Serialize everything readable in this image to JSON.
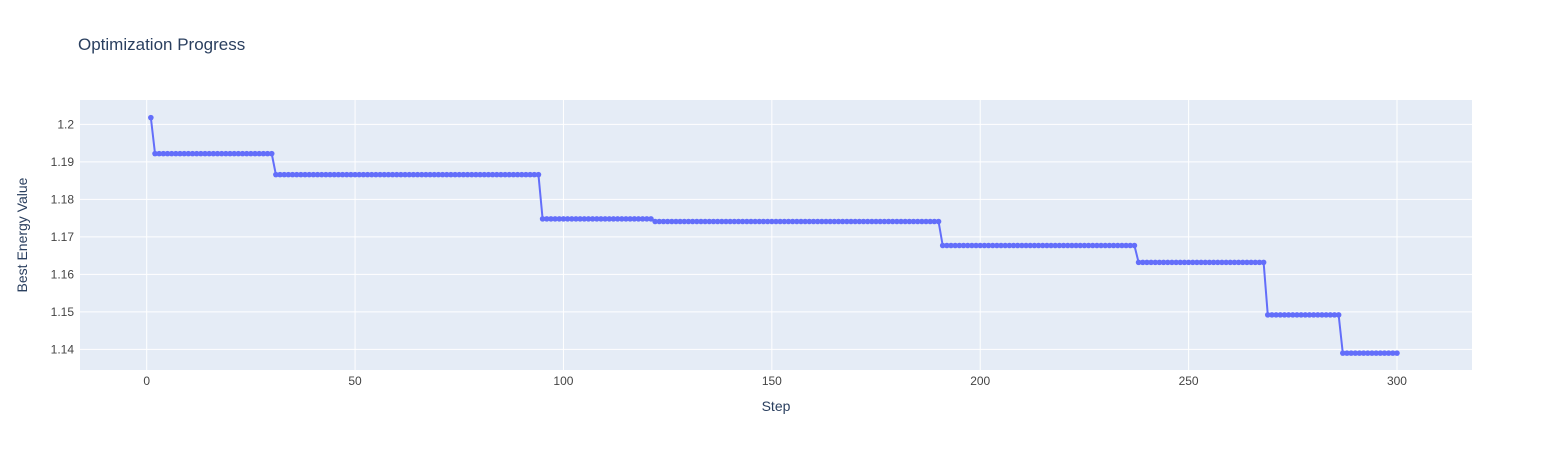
{
  "chart_data": {
    "type": "line",
    "title": "Optimization Progress",
    "xlabel": "Step",
    "ylabel": "Best Energy Value",
    "xlim": [
      -16,
      318
    ],
    "ylim": [
      1.1345,
      1.2065
    ],
    "xticks": [
      0,
      50,
      100,
      150,
      200,
      250,
      300
    ],
    "xtick_labels": [
      "0",
      "50",
      "100",
      "150",
      "200",
      "250",
      "300"
    ],
    "yticks": [
      1.14,
      1.15,
      1.16,
      1.17,
      1.18,
      1.19,
      1.2
    ],
    "ytick_labels": [
      "1.14",
      "1.15",
      "1.16",
      "1.17",
      "1.18",
      "1.19",
      "1.2"
    ],
    "grid": true,
    "series": [
      {
        "name": "Best Energy Value",
        "color": "#636efa",
        "mode": "lines+markers",
        "x_start": 1,
        "x_end": 300,
        "levels": [
          {
            "from": 1,
            "to": 1,
            "value": 1.2018
          },
          {
            "from": 2,
            "to": 30,
            "value": 1.1922
          },
          {
            "from": 31,
            "to": 94,
            "value": 1.1866
          },
          {
            "from": 95,
            "to": 121,
            "value": 1.1748
          },
          {
            "from": 122,
            "to": 190,
            "value": 1.1741
          },
          {
            "from": 191,
            "to": 237,
            "value": 1.1677
          },
          {
            "from": 238,
            "to": 268,
            "value": 1.1632
          },
          {
            "from": 269,
            "to": 286,
            "value": 1.1492
          },
          {
            "from": 287,
            "to": 300,
            "value": 1.139
          }
        ]
      }
    ]
  },
  "colors": {
    "plot_bg": "#e5ecf6",
    "grid": "#ffffff",
    "line": "#636efa",
    "text": "#2a3f5f",
    "tick_text": "#444444"
  }
}
